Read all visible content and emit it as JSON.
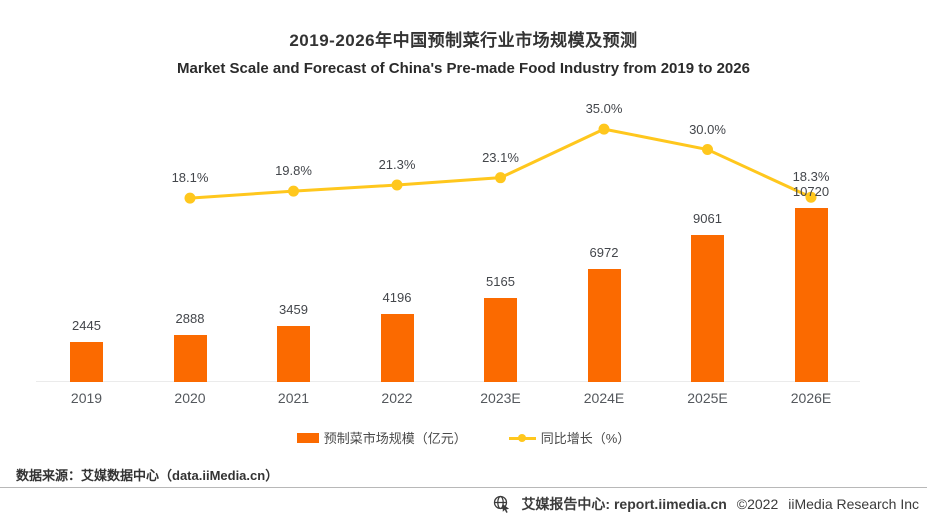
{
  "chart_data": {
    "type": "combo",
    "title": "2019-2026年中国预制菜行业市场规模及预测",
    "subtitle": "Market Scale and Forecast of China's Pre-made Food Industry from 2019 to 2026",
    "categories": [
      "2019",
      "2020",
      "2021",
      "2022",
      "2023E",
      "2024E",
      "2025E",
      "2026E"
    ],
    "series": [
      {
        "name": "预制菜市场规模（亿元）",
        "type": "bar",
        "values": [
          2445,
          2888,
          3459,
          4196,
          5165,
          6972,
          9061,
          10720
        ],
        "color": "#FB6A00"
      },
      {
        "name": "同比增长（%）",
        "type": "line",
        "values": [
          null,
          18.1,
          19.8,
          21.3,
          23.1,
          35.0,
          30.0,
          18.3
        ],
        "unit": "%",
        "color": "#FFC71D"
      }
    ],
    "data_labels": true,
    "grid": false,
    "legend_position": "bottom",
    "xlabel": "",
    "ylabel": ""
  },
  "legend": {
    "bar_label": "预制菜市场规模（亿元）",
    "line_label": "同比增长（%）"
  },
  "source_note": "数据来源：艾媒数据中心（data.iiMedia.cn）",
  "footer": {
    "report_center": "艾媒报告中心: report.iimedia.cn",
    "copyright": "©2022",
    "company": "iiMedia Research Inc"
  },
  "colors": {
    "bar": "#FB6A00",
    "line": "#FFC71D",
    "title": "#333333",
    "label": "#43464b",
    "axis_label": "#54585d",
    "baseline": "#ebebeb",
    "divider": "#b8b8b8"
  }
}
